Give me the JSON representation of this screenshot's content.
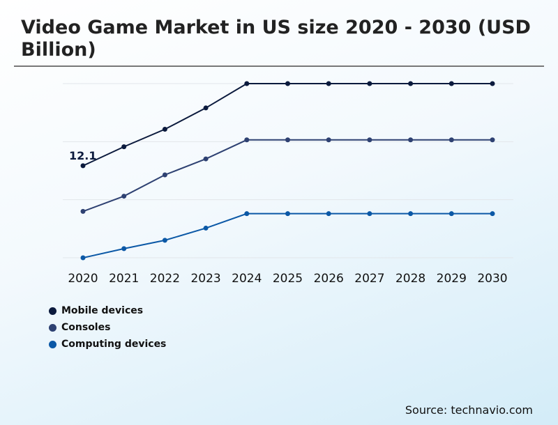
{
  "chart_data": {
    "type": "line",
    "title": "Video Game Market in US size 2020 - 2030 (USD Billion)",
    "x": [
      "2020",
      "2021",
      "2022",
      "2023",
      "2024",
      "2025",
      "2026",
      "2027",
      "2028",
      "2029",
      "2030"
    ],
    "series": [
      {
        "name": "Mobile devices",
        "color": "#0b1a3d",
        "values": [
          12.1,
          14.6,
          16.9,
          19.7,
          22.9,
          22.9,
          22.9,
          22.9,
          22.9,
          22.9,
          22.9
        ]
      },
      {
        "name": "Consoles",
        "color": "#2e4172",
        "values": [
          6.1,
          8.1,
          10.9,
          13.0,
          15.5,
          15.5,
          15.5,
          15.5,
          15.5,
          15.5,
          15.5
        ]
      },
      {
        "name": "Computing devices",
        "color": "#0b58a6",
        "values": [
          0.0,
          1.2,
          2.3,
          3.9,
          5.8,
          5.8,
          5.8,
          5.8,
          5.8,
          5.8,
          5.8
        ]
      }
    ],
    "data_labels": [
      {
        "series": "Mobile devices",
        "x": "2020",
        "text": "12.1"
      }
    ],
    "ylim": [
      0,
      22.9
    ],
    "grid": true,
    "legend": "bottom-left"
  },
  "source": "Source: technavio.com"
}
